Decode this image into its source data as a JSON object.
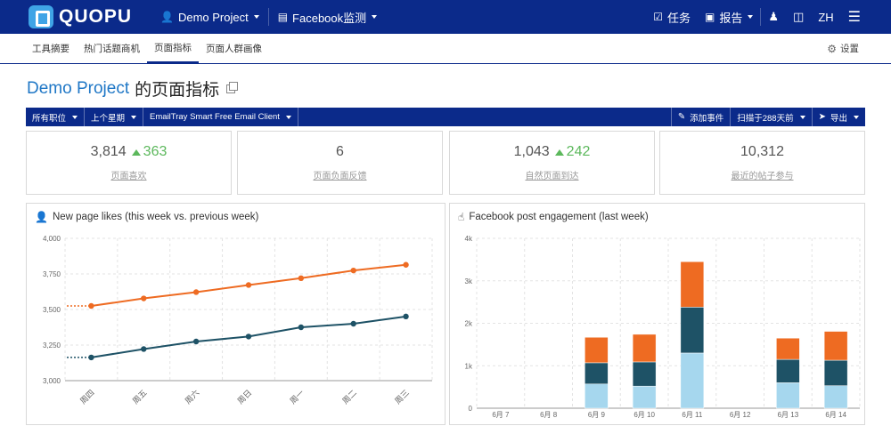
{
  "brand": {
    "name": "QUOPU"
  },
  "topnav": {
    "project": "Demo Project",
    "page": "Facebook监测",
    "tasks": "任务",
    "reports": "报告",
    "lang": "ZH"
  },
  "subnav": {
    "tabs": [
      "工具摘要",
      "热门话题商机",
      "页面指标",
      "页面人群画像"
    ],
    "active_index": 2,
    "settings": "设置"
  },
  "page_title": {
    "project": "Demo Project",
    "suffix": "的页面指标"
  },
  "filters": {
    "position": "所有职位",
    "period": "上个星期",
    "page": "EmailTray Smart Free Email Client",
    "add_event": "添加事件",
    "scan": "扫描于288天前",
    "export": "导出"
  },
  "stats": [
    {
      "value": "3,814",
      "delta": "363",
      "label": "页面喜欢"
    },
    {
      "value": "6",
      "delta": "",
      "label": "页面负面反馈"
    },
    {
      "value": "1,043",
      "delta": "242",
      "label": "自然页面到达"
    },
    {
      "value": "10,312",
      "delta": "",
      "label": "最近的帖子参与"
    }
  ],
  "colors": {
    "nav": "#0b2a8a",
    "accent_blue": "#1f77c6",
    "orange": "#ee6b22",
    "teal": "#1e5266",
    "light_blue": "#a6d7ee",
    "positive": "#5cb85c"
  },
  "chart_data": [
    {
      "type": "line",
      "title": "New page likes (this week vs. previous week)",
      "categories": [
        "周四",
        "周五",
        "周六",
        "周日",
        "周一",
        "周二",
        "周三"
      ],
      "ylim": [
        3000,
        4000
      ],
      "yticks": [
        "3,000",
        "3,250",
        "3,500",
        "3,750",
        "4,000"
      ],
      "series": [
        {
          "values": [
            3525,
            3578,
            3622,
            3672,
            3720,
            3774,
            3814
          ],
          "color": "#ee6b22"
        },
        {
          "values": [
            3163,
            3222,
            3275,
            3310,
            3375,
            3400,
            3451
          ],
          "color": "#1e5266"
        }
      ],
      "grid": true
    },
    {
      "type": "bar",
      "title": "Facebook post engagement (last week)",
      "categories": [
        "6月 7",
        "6月 8",
        "6月 9",
        "6月 10",
        "6月 11",
        "6月 12",
        "6月 13",
        "6月 14"
      ],
      "ylim": [
        0,
        4000
      ],
      "yticks": [
        "0",
        "1k",
        "2k",
        "3k",
        "4k"
      ],
      "stacked": true,
      "series": [
        {
          "values": [
            0,
            0,
            570,
            520,
            1300,
            0,
            600,
            530
          ],
          "color": "#a6d7ee"
        },
        {
          "values": [
            0,
            0,
            500,
            570,
            1080,
            0,
            550,
            600
          ],
          "color": "#1e5266"
        },
        {
          "values": [
            0,
            0,
            600,
            650,
            1070,
            0,
            500,
            680
          ],
          "color": "#ee6b22"
        }
      ],
      "grid": true
    }
  ]
}
